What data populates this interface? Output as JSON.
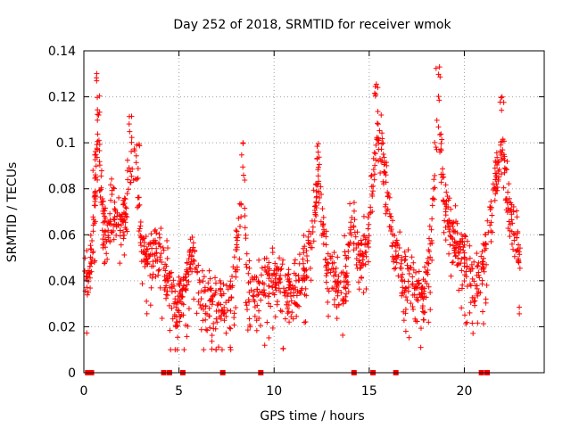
{
  "chart_data": {
    "type": "scatter",
    "title": "Day 252 of 2018, SRMTID for receiver wmok",
    "xlabel": "GPS time / hours",
    "ylabel": "SRMTID / TECUs",
    "xlim": [
      0,
      24.2
    ],
    "ylim": [
      0,
      0.14
    ],
    "xticks": [
      0,
      5,
      10,
      15,
      20
    ],
    "yticks": [
      0,
      0.02,
      0.04,
      0.06,
      0.08,
      0.1,
      0.12,
      0.14
    ],
    "ytick_labels": [
      "0",
      "0.02",
      "0.04",
      "0.06",
      "0.08",
      "0.1",
      "0.12",
      "0.14"
    ],
    "grid": true,
    "marker": "+",
    "color": "#ff0000",
    "series_anchor_points": [
      {
        "x": 0.25,
        "y": 0.045
      },
      {
        "x": 0.45,
        "y": 0.06
      },
      {
        "x": 0.6,
        "y": 0.095
      },
      {
        "x": 0.7,
        "y": 0.12
      },
      {
        "x": 0.75,
        "y": 0.131
      },
      {
        "x": 1.0,
        "y": 0.075
      },
      {
        "x": 1.2,
        "y": 0.063
      },
      {
        "x": 1.5,
        "y": 0.085
      },
      {
        "x": 2.0,
        "y": 0.07
      },
      {
        "x": 2.4,
        "y": 0.097
      },
      {
        "x": 2.5,
        "y": 0.113
      },
      {
        "x": 2.8,
        "y": 0.1
      },
      {
        "x": 3.0,
        "y": 0.065
      },
      {
        "x": 3.3,
        "y": 0.055
      },
      {
        "x": 3.8,
        "y": 0.06
      },
      {
        "x": 4.3,
        "y": 0.045
      },
      {
        "x": 4.8,
        "y": 0.03
      },
      {
        "x": 5.0,
        "y": 0.025
      },
      {
        "x": 5.7,
        "y": 0.055
      },
      {
        "x": 6.3,
        "y": 0.03
      },
      {
        "x": 6.8,
        "y": 0.025
      },
      {
        "x": 7.4,
        "y": 0.028
      },
      {
        "x": 7.8,
        "y": 0.03
      },
      {
        "x": 8.4,
        "y": 0.1
      },
      {
        "x": 8.6,
        "y": 0.04
      },
      {
        "x": 9.2,
        "y": 0.03
      },
      {
        "x": 9.6,
        "y": 0.045
      },
      {
        "x": 10.2,
        "y": 0.04
      },
      {
        "x": 11.0,
        "y": 0.035
      },
      {
        "x": 11.6,
        "y": 0.045
      },
      {
        "x": 12.1,
        "y": 0.08
      },
      {
        "x": 12.3,
        "y": 0.104
      },
      {
        "x": 12.8,
        "y": 0.05
      },
      {
        "x": 13.3,
        "y": 0.04
      },
      {
        "x": 13.8,
        "y": 0.045
      },
      {
        "x": 14.1,
        "y": 0.075
      },
      {
        "x": 14.5,
        "y": 0.05
      },
      {
        "x": 14.9,
        "y": 0.06
      },
      {
        "x": 15.4,
        "y": 0.13
      },
      {
        "x": 15.8,
        "y": 0.1
      },
      {
        "x": 16.3,
        "y": 0.06
      },
      {
        "x": 16.8,
        "y": 0.045
      },
      {
        "x": 17.3,
        "y": 0.04
      },
      {
        "x": 17.8,
        "y": 0.03
      },
      {
        "x": 18.2,
        "y": 0.055
      },
      {
        "x": 18.6,
        "y": 0.135
      },
      {
        "x": 19.0,
        "y": 0.08
      },
      {
        "x": 19.5,
        "y": 0.065
      },
      {
        "x": 20.1,
        "y": 0.05
      },
      {
        "x": 20.6,
        "y": 0.04
      },
      {
        "x": 21.0,
        "y": 0.05
      },
      {
        "x": 21.6,
        "y": 0.095
      },
      {
        "x": 22.0,
        "y": 0.12
      },
      {
        "x": 22.4,
        "y": 0.08
      },
      {
        "x": 22.9,
        "y": 0.055
      }
    ],
    "zero_points_x": [
      0.2,
      0.4,
      4.2,
      4.5,
      5.2,
      7.3,
      9.3,
      14.2,
      15.2,
      16.4,
      20.9,
      21.2
    ]
  }
}
